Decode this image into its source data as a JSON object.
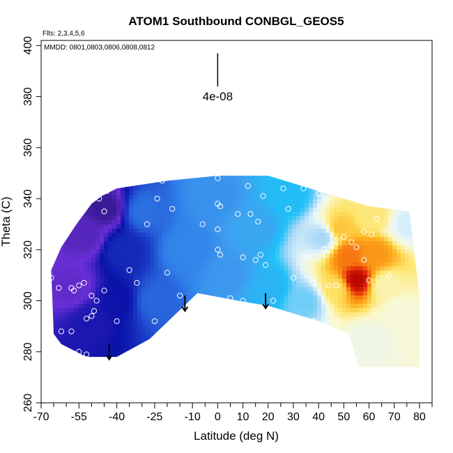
{
  "chart_data": {
    "type": "heatmap",
    "title": "ATOM1 Southbound CONBGL_GEOS5",
    "subtitle_flights": "Flts: 2,3,4,5,6",
    "subtitle_dates": "MMDD: 0801,0803,0806,0808,0812",
    "xlabel": "Latitude (deg N)",
    "ylabel": "Theta (C)",
    "xlim": [
      -70,
      85
    ],
    "ylim": [
      260,
      402
    ],
    "x_tick_labels": [
      "-70",
      "-55",
      "-40",
      "-25",
      "-10",
      "0",
      "10",
      "20",
      "30",
      "40",
      "50",
      "60",
      "70",
      "80"
    ],
    "x_tick_values": [
      -70,
      -55,
      -40,
      -25,
      -10,
      0,
      10,
      20,
      30,
      40,
      50,
      60,
      70,
      80
    ],
    "x_minor_ticks": [
      -65,
      -60,
      -50,
      -45,
      -35,
      -30,
      -20,
      -15,
      -5,
      5,
      15,
      25,
      35,
      45,
      55,
      65,
      75,
      85
    ],
    "y_tick_labels": [
      "260",
      "280",
      "300",
      "320",
      "340",
      "360",
      "380",
      "400"
    ],
    "y_tick_values": [
      260,
      280,
      300,
      320,
      340,
      360,
      380,
      400
    ],
    "scale_bar_label": "4e-08",
    "scale_bar": {
      "x": 0,
      "y_top": 397,
      "y_bottom": 384
    },
    "colormap": [
      "#22127a",
      "#6b2fd8",
      "#0a12a8",
      "#1c3fc8",
      "#2f7ee8",
      "#3fa0f0",
      "#1fc0f8",
      "#a6d8f6",
      "#e8f6fb",
      "#fbf7c8",
      "#fde46a",
      "#fdb020",
      "#f77a10",
      "#e12a0a",
      "#b40000"
    ],
    "domain_boundary": [
      [
        -65,
        287
      ],
      [
        -66,
        312
      ],
      [
        -62,
        321
      ],
      [
        -56,
        330
      ],
      [
        -50,
        338
      ],
      [
        -46,
        341
      ],
      [
        -40,
        344
      ],
      [
        -20,
        347
      ],
      [
        0,
        349
      ],
      [
        20,
        349
      ],
      [
        40,
        343
      ],
      [
        60,
        337
      ],
      [
        76,
        335
      ],
      [
        80,
        302
      ],
      [
        80,
        274
      ],
      [
        70,
        274
      ],
      [
        56,
        274
      ],
      [
        52,
        287
      ],
      [
        40,
        292
      ],
      [
        20,
        298
      ],
      [
        8,
        300
      ],
      [
        -8,
        303
      ],
      [
        -27,
        285
      ],
      [
        -40,
        278
      ],
      [
        -52,
        278
      ],
      [
        -62,
        283
      ]
    ],
    "field_anchors": [
      {
        "x": -58,
        "y": 305,
        "v": 0.06
      },
      {
        "x": -52,
        "y": 325,
        "v": 0.05
      },
      {
        "x": -44,
        "y": 336,
        "v": 0.02
      },
      {
        "x": -50,
        "y": 292,
        "v": 0.13
      },
      {
        "x": -40,
        "y": 300,
        "v": 0.14
      },
      {
        "x": -38,
        "y": 320,
        "v": 0.18
      },
      {
        "x": -30,
        "y": 335,
        "v": 0.27
      },
      {
        "x": -25,
        "y": 300,
        "v": 0.26
      },
      {
        "x": -12,
        "y": 320,
        "v": 0.3
      },
      {
        "x": 0,
        "y": 340,
        "v": 0.33
      },
      {
        "x": 5,
        "y": 310,
        "v": 0.34
      },
      {
        "x": 15,
        "y": 330,
        "v": 0.37
      },
      {
        "x": 20,
        "y": 305,
        "v": 0.4
      },
      {
        "x": 28,
        "y": 340,
        "v": 0.42
      },
      {
        "x": 35,
        "y": 300,
        "v": 0.47
      },
      {
        "x": 42,
        "y": 325,
        "v": 0.5
      },
      {
        "x": 60,
        "y": 285,
        "v": 0.6
      },
      {
        "x": 72,
        "y": 295,
        "v": 0.62
      },
      {
        "x": 75,
        "y": 330,
        "v": 0.55
      },
      {
        "x": 62,
        "y": 333,
        "v": 0.7
      },
      {
        "x": 48,
        "y": 328,
        "v": 0.76
      },
      {
        "x": 52,
        "y": 318,
        "v": 0.86
      },
      {
        "x": 62,
        "y": 318,
        "v": 0.82
      },
      {
        "x": 55,
        "y": 308,
        "v": 0.99
      },
      {
        "x": 47,
        "y": 305,
        "v": 0.72
      },
      {
        "x": 66,
        "y": 306,
        "v": 0.66
      }
    ],
    "observation_points": [
      [
        -69,
        314
      ],
      [
        -68,
        311
      ],
      [
        -66,
        309
      ],
      [
        -63,
        305
      ],
      [
        -58,
        305
      ],
      [
        -57,
        304
      ],
      [
        -55,
        306
      ],
      [
        -53,
        307
      ],
      [
        -50,
        302
      ],
      [
        -48,
        300
      ],
      [
        -49,
        296
      ],
      [
        -50,
        294
      ],
      [
        -52,
        293
      ],
      [
        -58,
        288
      ],
      [
        -62,
        288
      ],
      [
        -68,
        287
      ],
      [
        -55,
        280
      ],
      [
        -52,
        279
      ],
      [
        -47,
        340
      ],
      [
        -45,
        335
      ],
      [
        -44,
        343
      ],
      [
        -40,
        292
      ],
      [
        -35,
        312
      ],
      [
        -32,
        307
      ],
      [
        -28,
        330
      ],
      [
        -24,
        340
      ],
      [
        -22,
        347
      ],
      [
        -20,
        311
      ],
      [
        -18,
        336
      ],
      [
        -15,
        302
      ],
      [
        -25,
        292
      ],
      [
        -8,
        301
      ],
      [
        -6,
        330
      ],
      [
        -2,
        351
      ],
      [
        0,
        348
      ],
      [
        0,
        338
      ],
      [
        1,
        337
      ],
      [
        0,
        328
      ],
      [
        0,
        320
      ],
      [
        1,
        318
      ],
      [
        0,
        299
      ],
      [
        1,
        300
      ],
      [
        5,
        301
      ],
      [
        8,
        334
      ],
      [
        10,
        317
      ],
      [
        12,
        345
      ],
      [
        13,
        334
      ],
      [
        15,
        316
      ],
      [
        16,
        331
      ],
      [
        17,
        318
      ],
      [
        18,
        341
      ],
      [
        19,
        314
      ],
      [
        22,
        300
      ],
      [
        26,
        344
      ],
      [
        28,
        336
      ],
      [
        30,
        309
      ],
      [
        34,
        344
      ],
      [
        36,
        317
      ],
      [
        38,
        307
      ],
      [
        38,
        292
      ],
      [
        40,
        342
      ],
      [
        42,
        320
      ],
      [
        44,
        306
      ],
      [
        44,
        291
      ],
      [
        45,
        322
      ],
      [
        47,
        306
      ],
      [
        48,
        292
      ],
      [
        50,
        325
      ],
      [
        53,
        323
      ],
      [
        55,
        321
      ],
      [
        58,
        316
      ],
      [
        58,
        327
      ],
      [
        60,
        308
      ],
      [
        61,
        326
      ],
      [
        63,
        332
      ],
      [
        66,
        327
      ],
      [
        68,
        310
      ],
      [
        70,
        300
      ],
      [
        74,
        323
      ],
      [
        77,
        335
      ],
      [
        62,
        296
      ],
      [
        10,
        300
      ],
      [
        -45,
        304
      ]
    ],
    "arrows": [
      {
        "x": -43,
        "y_top": 283,
        "y_bottom": 277
      },
      {
        "x": -13,
        "y_top": 302,
        "y_bottom": 296
      },
      {
        "x": 19,
        "y_top": 303,
        "y_bottom": 297
      }
    ]
  }
}
